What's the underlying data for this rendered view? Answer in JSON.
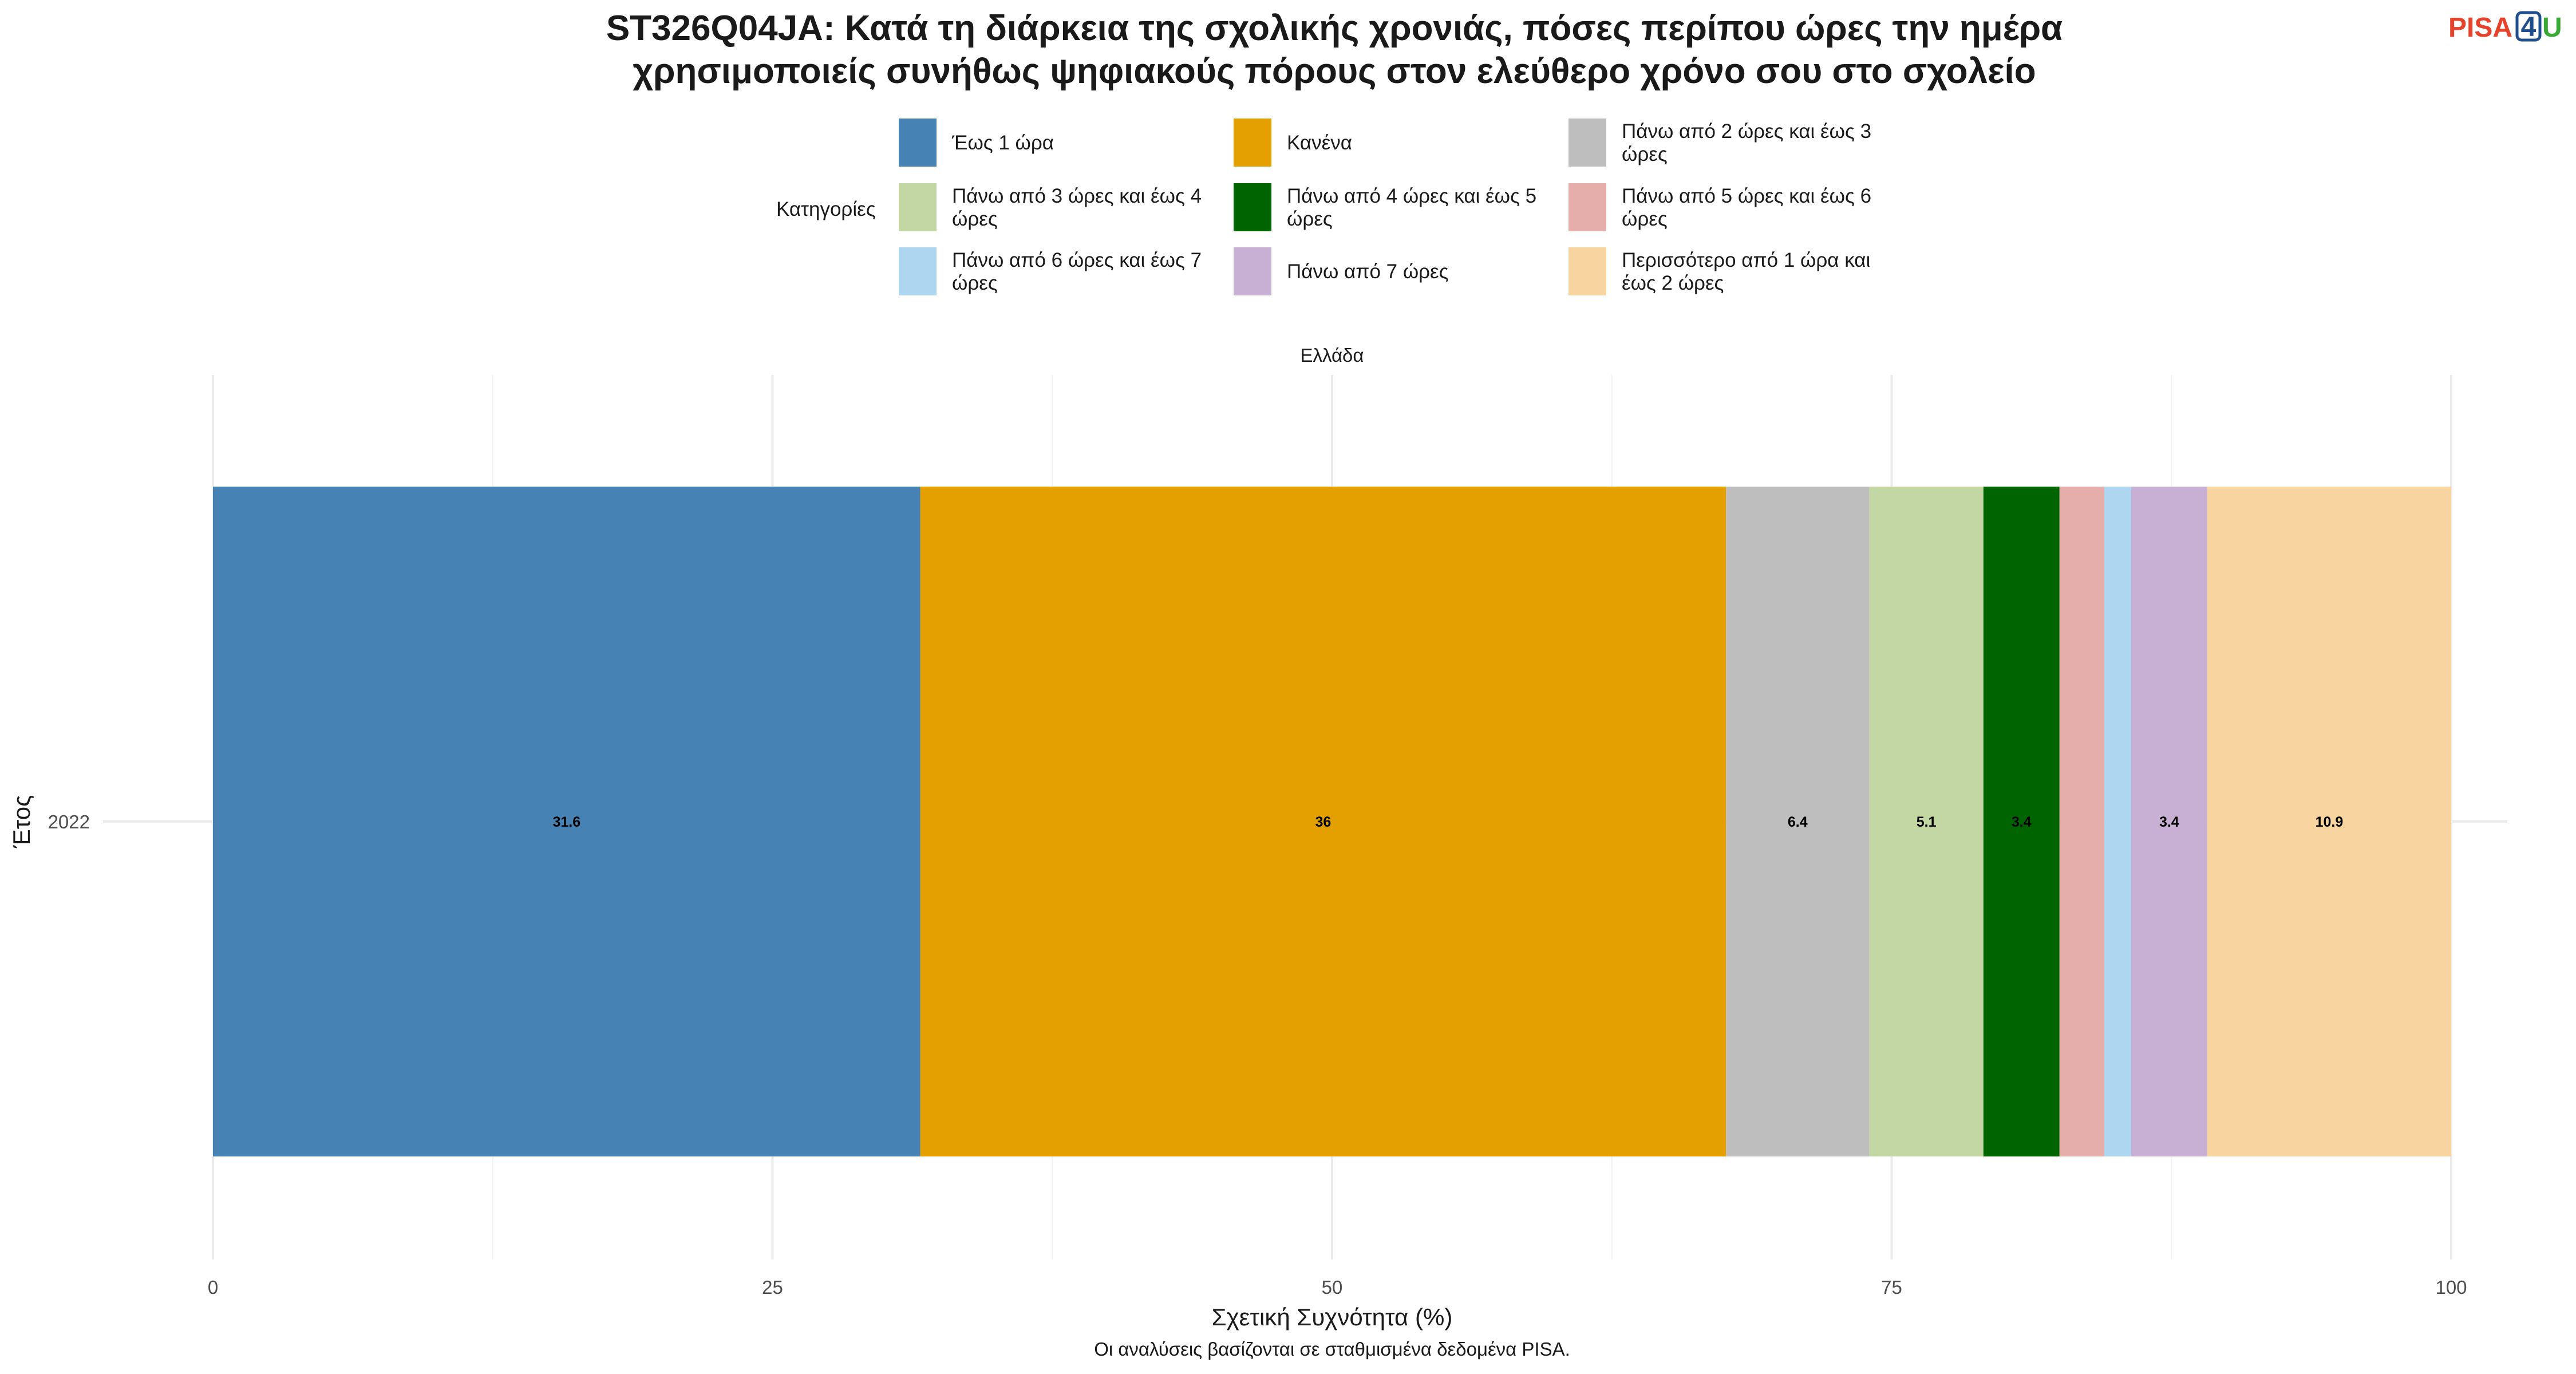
{
  "title_lines": [
    "ST326Q04JA: Κατά τη διάρκεια της σχολικής χρονιάς, πόσες περίπου ώρες την ημέρα",
    "χρησιμοποιείς συνήθως ψηφιακούς πόρους στον ελεύθερο χρόνο σου στο σχολείο"
  ],
  "logo": {
    "text_left": "PISA",
    "text_box": "4",
    "text_right": "U",
    "colors": {
      "left": "#e5432b",
      "box": "#1f4e8c",
      "right": "#3aa935"
    }
  },
  "legend": {
    "title": "Κατηγορίες",
    "items": [
      {
        "lines": [
          "Έως 1 ώρα"
        ],
        "color": "#4682b4"
      },
      {
        "lines": [
          "Κανένα"
        ],
        "color": "#e3a000"
      },
      {
        "lines": [
          "Πάνω από 2 ώρες και έως 3",
          "ώρες"
        ],
        "color": "#bebebe"
      },
      {
        "lines": [
          "Πάνω από 3 ώρες και έως 4",
          "ώρες"
        ],
        "color": "#c3d7a4"
      },
      {
        "lines": [
          "Πάνω από 4 ώρες και έως 5",
          "ώρες"
        ],
        "color": "#006400"
      },
      {
        "lines": [
          "Πάνω από 5 ώρες και έως 6",
          "ώρες"
        ],
        "color": "#e6aeaa"
      },
      {
        "lines": [
          "Πάνω από 6 ώρες και έως 7",
          "ώρες"
        ],
        "color": "#afd6f0"
      },
      {
        "lines": [
          "Πάνω από 7 ώρες"
        ],
        "color": "#c8b0d5"
      },
      {
        "lines": [
          "Περισσότερο από 1 ώρα και",
          "έως 2 ώρες"
        ],
        "color": "#f8d5a0"
      }
    ]
  },
  "chart_data": {
    "type": "bar",
    "orientation": "horizontal",
    "stacked": true,
    "facet": "Ελλάδα",
    "categories": [
      "2022"
    ],
    "series": [
      {
        "name": "Έως 1 ώρα",
        "values": [
          31.6
        ],
        "label": "31.6",
        "color": "#4682b4"
      },
      {
        "name": "Κανένα",
        "values": [
          36.0
        ],
        "label": "36",
        "color": "#e3a000"
      },
      {
        "name": "Πάνω από 2 ώρες και έως 3 ώρες",
        "values": [
          6.4
        ],
        "label": "6.4",
        "color": "#bebebe"
      },
      {
        "name": "Πάνω από 3 ώρες και έως 4 ώρες",
        "values": [
          5.1
        ],
        "label": "5.1",
        "color": "#c3d7a4"
      },
      {
        "name": "Πάνω από 4 ώρες και έως 5 ώρες",
        "values": [
          3.4
        ],
        "label": "3.4",
        "color": "#006400"
      },
      {
        "name": "Πάνω από 5 ώρες και έως 6 ώρες",
        "values": [
          2.0
        ],
        "label": "",
        "color": "#e6aeaa"
      },
      {
        "name": "Πάνω από 6 ώρες και έως 7 ώρες",
        "values": [
          1.2
        ],
        "label": "",
        "color": "#afd6f0"
      },
      {
        "name": "Πάνω από 7 ώρες",
        "values": [
          3.4
        ],
        "label": "3.4",
        "color": "#c8b0d5"
      },
      {
        "name": "Περισσότερο από 1 ώρα και έως 2 ώρες",
        "values": [
          10.9
        ],
        "label": "10.9",
        "color": "#f8d5a0"
      }
    ],
    "xlabel": "Σχετική Συχνότητα (%)",
    "ylabel": "Έτος",
    "xlim": [
      0,
      100
    ],
    "xticks": [
      0,
      25,
      50,
      75,
      100
    ],
    "grid": true,
    "legend_position": "top",
    "caption": "Οι αναλύσεις βασίζονται σε σταθμισμένα δεδομένα PISA."
  }
}
